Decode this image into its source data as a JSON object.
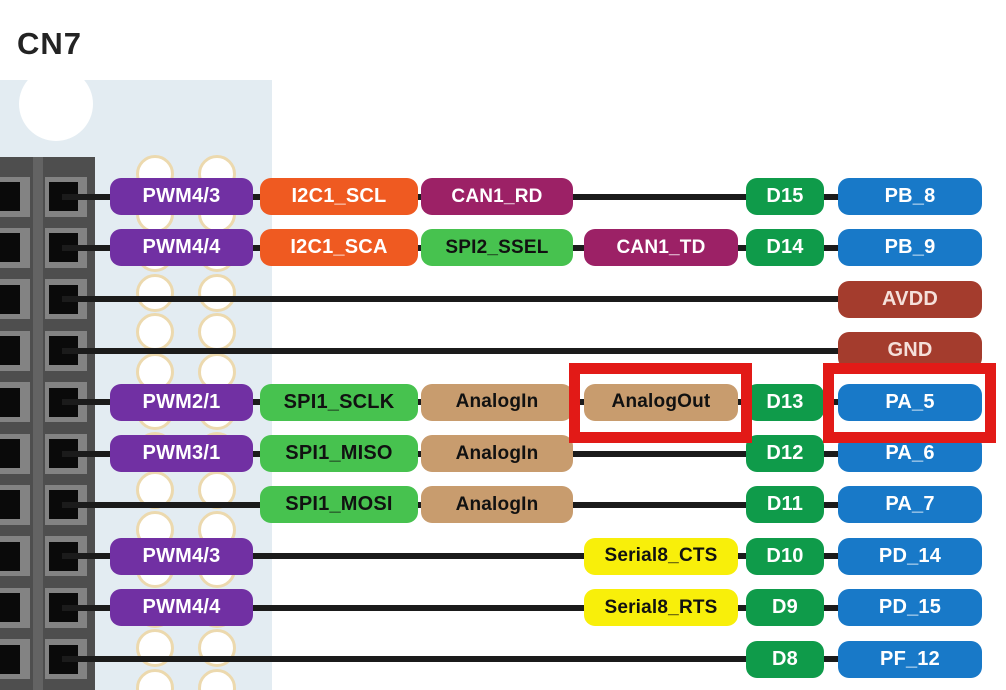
{
  "title": "CN7",
  "colors": {
    "purple": "#7130a3",
    "orange": "#ef5a21",
    "magenta": "#9c2166",
    "green_bright": "#47c24f",
    "green_dark": "#0f9b4a",
    "blue": "#1879c8",
    "brown": "#a43c2d",
    "tan": "#c89c6e",
    "yellow": "#f8ef0a",
    "highlight": "#e21a17",
    "panel": "#e3ecf2",
    "hole_ring": "#ecd9ae",
    "connector_body": "#4e4e4e",
    "connector_divider": "#636363",
    "connector_frame": "#838383",
    "line": "#1b1b1b",
    "text_light": "#ffffff",
    "text_dark": "#111111",
    "text_brown_pill": "#f5e0da"
  },
  "rows": [
    {
      "pills": [
        {
          "col": "pwm",
          "label": "PWM4/3",
          "color": "purple",
          "text": "light"
        },
        {
          "col": "bus2",
          "label": "I2C1_SCL",
          "color": "orange",
          "text": "light"
        },
        {
          "col": "bus3",
          "label": "CAN1_RD",
          "color": "magenta",
          "text": "light"
        },
        {
          "col": "dpin",
          "label": "D15",
          "color": "green_dark",
          "text": "light"
        },
        {
          "col": "mcu",
          "label": "PB_8",
          "color": "blue",
          "text": "light"
        }
      ]
    },
    {
      "pills": [
        {
          "col": "pwm",
          "label": "PWM4/4",
          "color": "purple",
          "text": "light"
        },
        {
          "col": "bus2",
          "label": "I2C1_SCA",
          "color": "orange",
          "text": "light"
        },
        {
          "col": "bus3",
          "label": "SPI2_SSEL",
          "color": "green_bright",
          "text": "dark"
        },
        {
          "col": "bus4",
          "label": "CAN1_TD",
          "color": "magenta",
          "text": "light"
        },
        {
          "col": "dpin",
          "label": "D14",
          "color": "green_dark",
          "text": "light"
        },
        {
          "col": "mcu",
          "label": "PB_9",
          "color": "blue",
          "text": "light"
        }
      ]
    },
    {
      "pills": [
        {
          "col": "mcu",
          "label": "AVDD",
          "color": "brown",
          "text": "brown_pill"
        }
      ]
    },
    {
      "pills": [
        {
          "col": "mcu",
          "label": "GND",
          "color": "brown",
          "text": "brown_pill"
        }
      ]
    },
    {
      "pills": [
        {
          "col": "pwm",
          "label": "PWM2/1",
          "color": "purple",
          "text": "light"
        },
        {
          "col": "bus2",
          "label": "SPI1_SCLK",
          "color": "green_bright",
          "text": "dark"
        },
        {
          "col": "bus3",
          "label": "AnalogIn",
          "color": "tan",
          "text": "dark"
        },
        {
          "col": "bus4",
          "label": "AnalogOut",
          "color": "tan",
          "text": "dark"
        },
        {
          "col": "dpin",
          "label": "D13",
          "color": "green_dark",
          "text": "light"
        },
        {
          "col": "mcu",
          "label": "PA_5",
          "color": "blue",
          "text": "light"
        }
      ]
    },
    {
      "pills": [
        {
          "col": "pwm",
          "label": "PWM3/1",
          "color": "purple",
          "text": "light"
        },
        {
          "col": "bus2",
          "label": "SPI1_MISO",
          "color": "green_bright",
          "text": "dark"
        },
        {
          "col": "bus3",
          "label": "AnalogIn",
          "color": "tan",
          "text": "dark"
        },
        {
          "col": "dpin",
          "label": "D12",
          "color": "green_dark",
          "text": "light"
        },
        {
          "col": "mcu",
          "label": "PA_6",
          "color": "blue",
          "text": "light"
        }
      ]
    },
    {
      "pills": [
        {
          "col": "bus2",
          "label": "SPI1_MOSI",
          "color": "green_bright",
          "text": "dark"
        },
        {
          "col": "bus3",
          "label": "AnalogIn",
          "color": "tan",
          "text": "dark"
        },
        {
          "col": "dpin",
          "label": "D11",
          "color": "green_dark",
          "text": "light"
        },
        {
          "col": "mcu",
          "label": "PA_7",
          "color": "blue",
          "text": "light"
        }
      ]
    },
    {
      "pills": [
        {
          "col": "pwm",
          "label": "PWM4/3",
          "color": "purple",
          "text": "light"
        },
        {
          "col": "bus4",
          "label": "Serial8_CTS",
          "color": "yellow",
          "text": "dark"
        },
        {
          "col": "dpin",
          "label": "D10",
          "color": "green_dark",
          "text": "light"
        },
        {
          "col": "mcu",
          "label": "PD_14",
          "color": "blue",
          "text": "light"
        }
      ]
    },
    {
      "pills": [
        {
          "col": "pwm",
          "label": "PWM4/4",
          "color": "purple",
          "text": "light"
        },
        {
          "col": "bus4",
          "label": "Serial8_RTS",
          "color": "yellow",
          "text": "dark"
        },
        {
          "col": "dpin",
          "label": "D9",
          "color": "green_dark",
          "text": "light"
        },
        {
          "col": "mcu",
          "label": "PD_15",
          "color": "blue",
          "text": "light"
        }
      ]
    },
    {
      "pills": [
        {
          "col": "dpin",
          "label": "D8",
          "color": "green_dark",
          "text": "light"
        },
        {
          "col": "mcu",
          "label": "PF_12",
          "color": "blue",
          "text": "light"
        }
      ]
    }
  ],
  "highlights": [
    {
      "row": 4,
      "col": "bus4",
      "target": "AnalogOut"
    },
    {
      "row": 4,
      "col": "mcu",
      "target": "PA_5"
    }
  ]
}
